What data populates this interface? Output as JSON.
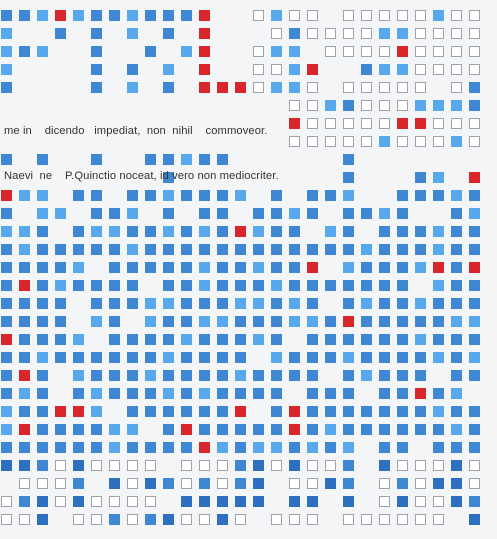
{
  "caption": {
    "line1": "me in    dicendo   impediat,  non  nihil    commoveor.",
    "line2": "Naevi  ne    P.Quinctio noceat, id vero non mediocriter."
  },
  "colors": {
    "blue": "#3f86d3",
    "light_blue": "#58a8ee",
    "dark_blue": "#2e6fc0",
    "red": "#d9262b",
    "outline": "#9ea3aa",
    "background": "#f4f5f7"
  }
}
